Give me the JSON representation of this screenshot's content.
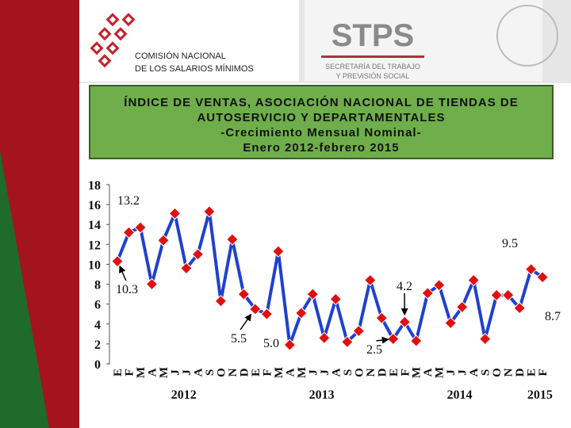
{
  "header": {
    "commission": [
      "COMISIÓN NACIONAL",
      "DE LOS SALARIOS MÍNIMOS"
    ],
    "stps": "STPS",
    "secretaria": [
      "SECRETARÍA DEL TRABAJO",
      "Y PREVISIÓN SOCIAL"
    ]
  },
  "chart_data": {
    "type": "line",
    "title": [
      "ÍNDICE DE VENTAS, ASOCIACIÓN NACIONAL DE TIENDAS DE",
      "AUTOSERVICIO Y DEPARTAMENTALES",
      "-Crecimiento Mensual Nominal-",
      "Enero 2012-febrero 2015"
    ],
    "categories": [
      "E",
      "F",
      "M",
      "A",
      "M",
      "J",
      "J",
      "A",
      "S",
      "O",
      "N",
      "D",
      "E",
      "F",
      "M",
      "A",
      "M",
      "J",
      "J",
      "A",
      "S",
      "O",
      "N",
      "D",
      "E",
      "F",
      "M",
      "A",
      "M",
      "J",
      "J",
      "A",
      "S",
      "O",
      "N",
      "D",
      "E",
      "F"
    ],
    "year_labels": [
      "2012",
      "2013",
      "2014",
      "2015"
    ],
    "values": [
      10.3,
      13.2,
      13.7,
      8.0,
      12.4,
      15.1,
      9.6,
      11.0,
      15.3,
      6.3,
      12.5,
      7.0,
      5.5,
      5.0,
      11.3,
      1.9,
      5.1,
      7.0,
      2.6,
      6.5,
      2.2,
      3.3,
      8.4,
      4.6,
      2.5,
      4.2,
      2.3,
      7.1,
      7.9,
      4.1,
      5.7,
      8.4,
      2.5,
      6.9,
      6.9,
      5.6,
      9.5,
      8.7
    ],
    "value_labels": [
      "10.3",
      "13.2",
      null,
      null,
      null,
      null,
      null,
      null,
      null,
      null,
      null,
      null,
      "5.5",
      "5.0",
      null,
      null,
      null,
      null,
      null,
      null,
      null,
      null,
      null,
      null,
      "2.5",
      "4.2",
      null,
      null,
      null,
      null,
      null,
      null,
      null,
      null,
      null,
      null,
      "9.5",
      "8.7"
    ],
    "color": "#2040d0",
    "marker_color": "#e01010",
    "ylim": [
      0,
      18
    ],
    "yticks": [
      0,
      2,
      4,
      6,
      8,
      10,
      12,
      14,
      16,
      18
    ]
  }
}
